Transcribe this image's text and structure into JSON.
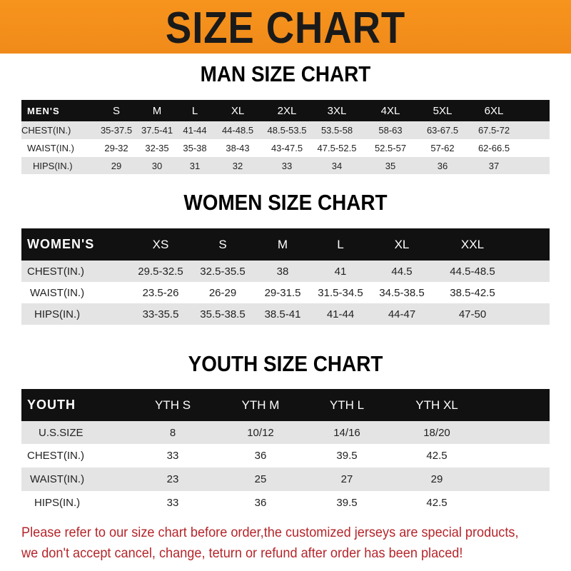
{
  "banner_title": "SIZE CHART",
  "men": {
    "title": "MAN SIZE CHART",
    "header": [
      "MEN'S",
      "S",
      "M",
      "L",
      "XL",
      "2XL",
      "3XL",
      "4XL",
      "5XL",
      "6XL"
    ],
    "rows": [
      [
        "CHEST(IN.)",
        "35-37.5",
        "37.5-41",
        "41-44",
        "44-48.5",
        "48.5-53.5",
        "53.5-58",
        "58-63",
        "63-67.5",
        "67.5-72"
      ],
      [
        "WAIST(IN.)",
        "29-32",
        "32-35",
        "35-38",
        "38-43",
        "43-47.5",
        "47.5-52.5",
        "52.5-57",
        "57-62",
        "62-66.5"
      ],
      [
        "HIPS(IN.)",
        "29",
        "30",
        "31",
        "32",
        "33",
        "34",
        "35",
        "36",
        "37"
      ]
    ]
  },
  "women": {
    "title": "WOMEN SIZE CHART",
    "header": [
      "WOMEN'S",
      "XS",
      "S",
      "M",
      "L",
      "XL",
      "XXL"
    ],
    "rows": [
      [
        "CHEST(IN.)",
        "29.5-32.5",
        "32.5-35.5",
        "38",
        "41",
        "44.5",
        "44.5-48.5"
      ],
      [
        "WAIST(IN.)",
        "23.5-26",
        "26-29",
        "29-31.5",
        "31.5-34.5",
        "34.5-38.5",
        "38.5-42.5"
      ],
      [
        "HIPS(IN.)",
        "33-35.5",
        "35.5-38.5",
        "38.5-41",
        "41-44",
        "44-47",
        "47-50"
      ]
    ]
  },
  "youth": {
    "title": "YOUTH SIZE CHART",
    "header": [
      "YOUTH",
      "YTH S",
      "YTH M",
      "YTH L",
      "YTH XL"
    ],
    "rows": [
      [
        "U.S.SIZE",
        "8",
        "10/12",
        "14/16",
        "18/20"
      ],
      [
        "CHEST(IN.)",
        "33",
        "36",
        "39.5",
        "42.5"
      ],
      [
        "WAIST(IN.)",
        "23",
        "25",
        "27",
        "29"
      ],
      [
        "HIPS(IN.)",
        "33",
        "36",
        "39.5",
        "42.5"
      ]
    ]
  },
  "note": [
    "Please refer to our size chart before order,the customized jerseys are special products,",
    "we don't accept cancel, change, teturn or refund after order has been placed!"
  ],
  "colors": {
    "banner": "#f7941d",
    "header_row": "#111111",
    "note": "#b5252a"
  }
}
